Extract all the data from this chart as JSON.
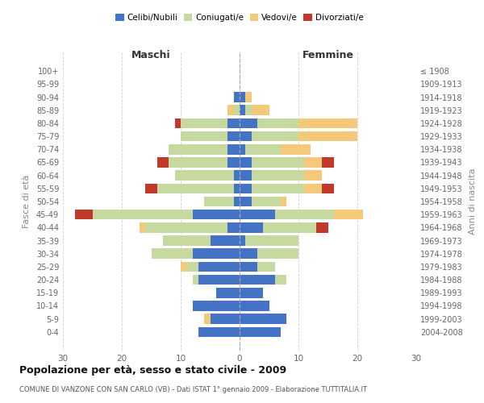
{
  "age_groups": [
    "100+",
    "95-99",
    "90-94",
    "85-89",
    "80-84",
    "75-79",
    "70-74",
    "65-69",
    "60-64",
    "55-59",
    "50-54",
    "45-49",
    "40-44",
    "35-39",
    "30-34",
    "25-29",
    "20-24",
    "15-19",
    "10-14",
    "5-9",
    "0-4"
  ],
  "birth_years": [
    "≤ 1908",
    "1909-1913",
    "1914-1918",
    "1919-1923",
    "1924-1928",
    "1929-1933",
    "1934-1938",
    "1939-1943",
    "1944-1948",
    "1949-1953",
    "1954-1958",
    "1959-1963",
    "1964-1968",
    "1969-1973",
    "1974-1978",
    "1979-1983",
    "1984-1988",
    "1989-1993",
    "1994-1998",
    "1999-2003",
    "2004-2008"
  ],
  "maschi": {
    "celibi": [
      0,
      0,
      1,
      0,
      2,
      2,
      2,
      2,
      1,
      1,
      1,
      8,
      2,
      5,
      8,
      7,
      7,
      4,
      8,
      5,
      7
    ],
    "coniugati": [
      0,
      0,
      0,
      1,
      8,
      8,
      10,
      10,
      10,
      13,
      5,
      17,
      14,
      8,
      7,
      2,
      1,
      0,
      0,
      0,
      0
    ],
    "vedovi": [
      0,
      0,
      0,
      1,
      0,
      0,
      0,
      0,
      0,
      0,
      0,
      0,
      1,
      0,
      0,
      1,
      0,
      0,
      0,
      1,
      0
    ],
    "divorziati": [
      0,
      0,
      0,
      0,
      1,
      0,
      0,
      2,
      0,
      2,
      0,
      3,
      0,
      0,
      0,
      0,
      0,
      0,
      0,
      0,
      0
    ]
  },
  "femmine": {
    "nubili": [
      0,
      0,
      1,
      1,
      3,
      2,
      1,
      2,
      2,
      2,
      2,
      6,
      4,
      1,
      3,
      3,
      6,
      4,
      5,
      8,
      7
    ],
    "coniugate": [
      0,
      0,
      0,
      1,
      7,
      8,
      6,
      9,
      9,
      9,
      5,
      10,
      9,
      9,
      7,
      3,
      2,
      0,
      0,
      0,
      0
    ],
    "vedove": [
      0,
      0,
      1,
      3,
      10,
      10,
      5,
      3,
      3,
      3,
      1,
      5,
      0,
      0,
      0,
      0,
      0,
      0,
      0,
      0,
      0
    ],
    "divorziate": [
      0,
      0,
      0,
      0,
      0,
      0,
      0,
      2,
      0,
      2,
      0,
      0,
      2,
      0,
      0,
      0,
      0,
      0,
      0,
      0,
      0
    ]
  },
  "colors": {
    "celibi": "#4472c4",
    "coniugati": "#c5d9a0",
    "vedovi": "#f5c97a",
    "divorziati": "#c0392b"
  },
  "title": "Popolazione per età, sesso e stato civile - 2009",
  "subtitle": "COMUNE DI VANZONE CON SAN CARLO (VB) - Dati ISTAT 1° gennaio 2009 - Elaborazione TUTTITALIA.IT",
  "ylabel_left": "Fasce di età",
  "ylabel_right": "Anni di nascita",
  "xlabel_left": "Maschi",
  "xlabel_right": "Femmine",
  "xlim": 30,
  "background_color": "#ffffff",
  "grid_color": "#cccccc"
}
